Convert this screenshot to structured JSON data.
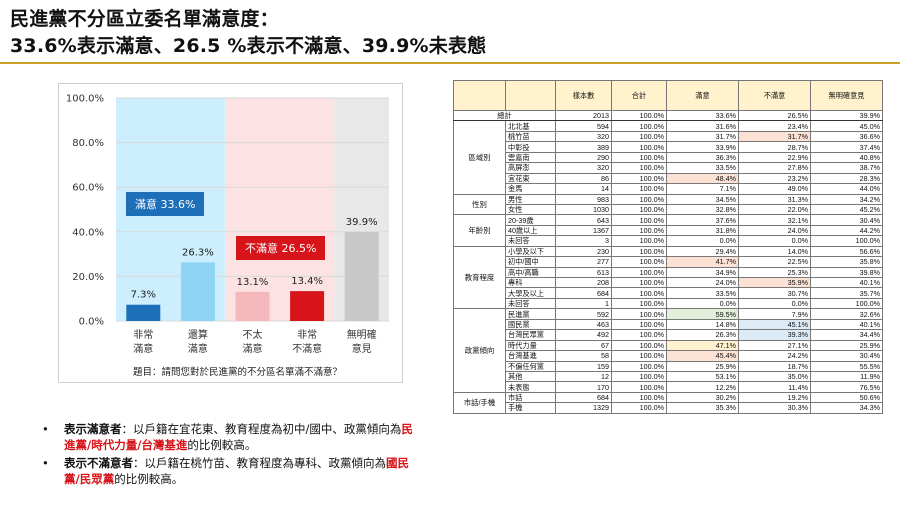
{
  "title": {
    "line1": "民進黨不分區立委名單滿意度：",
    "line2": "33.6%表示滿意、26.5 %表示不滿意、39.9%未表態"
  },
  "chart_data": {
    "type": "bar",
    "categories": [
      "非常\n滿意",
      "還算\n滿意",
      "不太\n滿意",
      "非常\n不滿意",
      "無明確\n意見"
    ],
    "values": [
      7.3,
      26.3,
      13.1,
      13.4,
      39.9
    ],
    "value_labels": [
      "7.3%",
      "26.3%",
      "13.1%",
      "13.4%",
      "39.9%"
    ],
    "bar_colors": [
      "#1d6fb8",
      "#8fd3f5",
      "#f5b8bb",
      "#d7141a",
      "#c8c8c8"
    ],
    "ylim": [
      0,
      100
    ],
    "yticks": [
      "0.0%",
      "20.0%",
      "40.0%",
      "60.0%",
      "80.0%",
      "100.0%"
    ],
    "ytick_values": [
      0,
      20,
      40,
      60,
      80,
      100
    ],
    "groups": [
      {
        "name": "satisfied",
        "color": "#cdeefc",
        "span": [
          0,
          1
        ]
      },
      {
        "name": "dissatisfied",
        "color": "#fde2e3",
        "span": [
          2,
          3
        ]
      },
      {
        "name": "no-opinion",
        "color": "#e8e8e8",
        "span": [
          4,
          4
        ]
      }
    ],
    "callouts": {
      "satisfied": "滿意 33.6%",
      "dissatisfied": "不滿意 26.5%"
    },
    "note": "題目：請問您對於民進黨的不分區名單滿不滿意？"
  },
  "bullets": [
    {
      "head": "表示滿意者",
      "text_a": "：以戶籍在宜花東、教育程度為初中/國中、政黨傾向為",
      "red": "民進黨/時代力量/台灣基進",
      "text_b": "的比例較高。"
    },
    {
      "head": "表示不滿意者",
      "text_a": "：以戶籍在桃竹苗、教育程度為專科、政黨傾向為",
      "red": "國民黨/民眾黨",
      "text_b": "的比例較高。"
    }
  ],
  "table": {
    "headers": [
      "",
      "",
      "樣本數",
      "合計",
      "滿意",
      "不滿意",
      "無明確意見"
    ],
    "total": {
      "label": "總計",
      "cells": [
        "2013",
        "100.0%",
        "33.6%",
        "26.5%",
        "39.9%"
      ]
    },
    "groups": [
      {
        "name": "區域別",
        "rows": [
          {
            "label": "北北基",
            "cells": [
              "594",
              "100.0%",
              "31.6%",
              "23.4%",
              "45.0%"
            ]
          },
          {
            "label": "桃竹苗",
            "cells": [
              "320",
              "100.0%",
              "31.7%",
              "31.7%",
              "36.6%"
            ],
            "hl": {
              "3": "peach"
            }
          },
          {
            "label": "中彰投",
            "cells": [
              "389",
              "100.0%",
              "33.9%",
              "28.7%",
              "37.4%"
            ]
          },
          {
            "label": "雲嘉南",
            "cells": [
              "290",
              "100.0%",
              "36.3%",
              "22.9%",
              "40.8%"
            ]
          },
          {
            "label": "高屏澎",
            "cells": [
              "320",
              "100.0%",
              "33.5%",
              "27.8%",
              "38.7%"
            ]
          },
          {
            "label": "宜花東",
            "cells": [
              "86",
              "100.0%",
              "48.4%",
              "23.2%",
              "28.3%"
            ],
            "hl": {
              "2": "peach"
            }
          },
          {
            "label": "金馬",
            "cells": [
              "14",
              "100.0%",
              "7.1%",
              "49.0%",
              "44.0%"
            ]
          }
        ]
      },
      {
        "name": "性別",
        "rows": [
          {
            "label": "男性",
            "cells": [
              "983",
              "100.0%",
              "34.5%",
              "31.3%",
              "34.2%"
            ]
          },
          {
            "label": "女性",
            "cells": [
              "1030",
              "100.0%",
              "32.8%",
              "22.0%",
              "45.2%"
            ]
          }
        ]
      },
      {
        "name": "年齡別",
        "rows": [
          {
            "label": "20-39歲",
            "cells": [
              "643",
              "100.0%",
              "37.6%",
              "32.1%",
              "30.4%"
            ]
          },
          {
            "label": "40歲以上",
            "cells": [
              "1367",
              "100.0%",
              "31.8%",
              "24.0%",
              "44.2%"
            ]
          },
          {
            "label": "未回答",
            "cells": [
              "3",
              "100.0%",
              "0.0%",
              "0.0%",
              "100.0%"
            ]
          }
        ]
      },
      {
        "name": "教育程度",
        "rows": [
          {
            "label": "小學及以下",
            "cells": [
              "230",
              "100.0%",
              "29.4%",
              "14.0%",
              "56.6%"
            ]
          },
          {
            "label": "初中/國中",
            "cells": [
              "277",
              "100.0%",
              "41.7%",
              "22.5%",
              "35.8%"
            ],
            "hl": {
              "2": "peach"
            }
          },
          {
            "label": "高中/高職",
            "cells": [
              "613",
              "100.0%",
              "34.9%",
              "25.3%",
              "39.8%"
            ]
          },
          {
            "label": "專科",
            "cells": [
              "208",
              "100.0%",
              "24.0%",
              "35.9%",
              "40.1%"
            ],
            "hl": {
              "3": "peach"
            }
          },
          {
            "label": "大學及以上",
            "cells": [
              "684",
              "100.0%",
              "33.5%",
              "30.7%",
              "35.7%"
            ]
          },
          {
            "label": "未回答",
            "cells": [
              "1",
              "100.0%",
              "0.0%",
              "0.0%",
              "100.0%"
            ]
          }
        ]
      },
      {
        "name": "政黨傾向",
        "rows": [
          {
            "label": "民進黨",
            "cells": [
              "592",
              "100.0%",
              "59.5%",
              "7.9%",
              "32.6%"
            ],
            "hl": {
              "2": "green"
            }
          },
          {
            "label": "國民黨",
            "cells": [
              "463",
              "100.0%",
              "14.8%",
              "45.1%",
              "40.1%"
            ],
            "hl": {
              "3": "blue"
            }
          },
          {
            "label": "台灣民眾黨",
            "cells": [
              "492",
              "100.0%",
              "26.3%",
              "39.3%",
              "34.4%"
            ],
            "hl": {
              "3": "blue"
            }
          },
          {
            "label": "時代力量",
            "cells": [
              "67",
              "100.0%",
              "47.1%",
              "27.1%",
              "25.9%"
            ],
            "hl": {
              "2": "yellow"
            }
          },
          {
            "label": "台灣基進",
            "cells": [
              "58",
              "100.0%",
              "45.4%",
              "24.2%",
              "30.4%"
            ],
            "hl": {
              "2": "peach"
            }
          },
          {
            "label": "不偏任何黨",
            "cells": [
              "159",
              "100.0%",
              "25.9%",
              "18.7%",
              "55.5%"
            ]
          },
          {
            "label": "其他",
            "cells": [
              "12",
              "100.0%",
              "53.1%",
              "35.0%",
              "11.9%"
            ]
          },
          {
            "label": "未表態",
            "cells": [
              "170",
              "100.0%",
              "12.2%",
              "11.4%",
              "76.5%"
            ]
          }
        ]
      },
      {
        "name": "市話/手機",
        "rows": [
          {
            "label": "市話",
            "cells": [
              "684",
              "100.0%",
              "30.2%",
              "19.2%",
              "50.6%"
            ]
          },
          {
            "label": "手機",
            "cells": [
              "1329",
              "100.0%",
              "35.3%",
              "30.3%",
              "34.3%"
            ]
          }
        ]
      }
    ]
  }
}
